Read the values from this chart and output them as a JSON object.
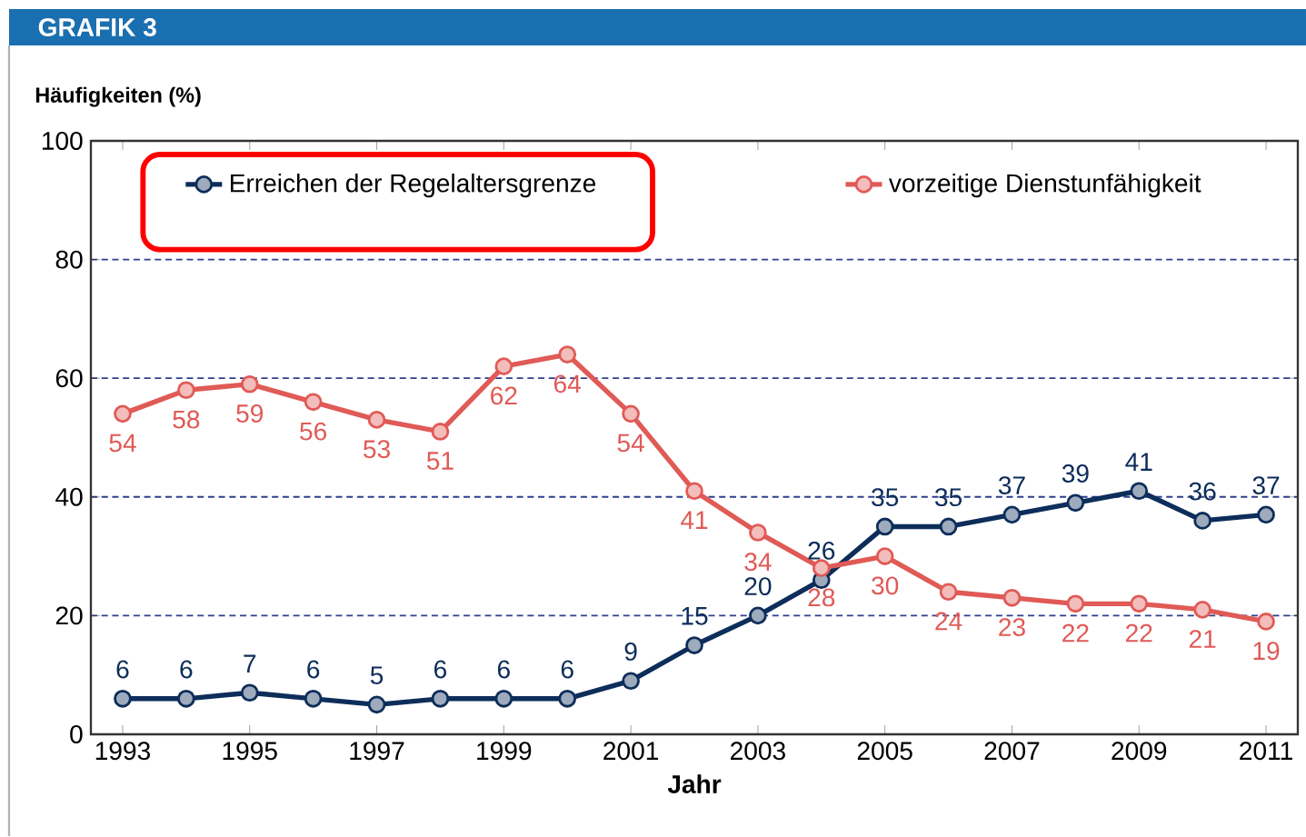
{
  "chart_data": {
    "type": "line",
    "title": "GRAFIK 3",
    "ylabel": "Häufigkeiten (%)",
    "xlabel": "Jahr",
    "x": [
      1993,
      1994,
      1995,
      1996,
      1997,
      1998,
      1999,
      2000,
      2001,
      2002,
      2003,
      2004,
      2005,
      2006,
      2007,
      2008,
      2009,
      2010,
      2011
    ],
    "series": [
      {
        "name": "Erreichen der Regelaltersgrenze",
        "color": "#0d2d5a",
        "values": [
          6,
          6,
          7,
          6,
          5,
          6,
          6,
          6,
          9,
          15,
          20,
          26,
          35,
          35,
          37,
          39,
          41,
          36,
          37
        ]
      },
      {
        "name": "vorzeitige Dienstunfähigkeit",
        "color": "#e05a56",
        "values": [
          54,
          58,
          59,
          56,
          53,
          51,
          62,
          64,
          54,
          41,
          34,
          28,
          30,
          24,
          23,
          22,
          22,
          21,
          19
        ]
      }
    ],
    "xlim": [
      1992.5,
      2011.5
    ],
    "ylim": [
      0,
      100
    ],
    "xticks": [
      1993,
      1995,
      1997,
      1999,
      2001,
      2003,
      2005,
      2007,
      2009,
      2011
    ],
    "yticks": [
      0,
      20,
      40,
      60,
      80,
      100
    ],
    "grid": "y",
    "legend": "top",
    "marker": "circle",
    "line_style": "solid",
    "data_labels": true
  }
}
